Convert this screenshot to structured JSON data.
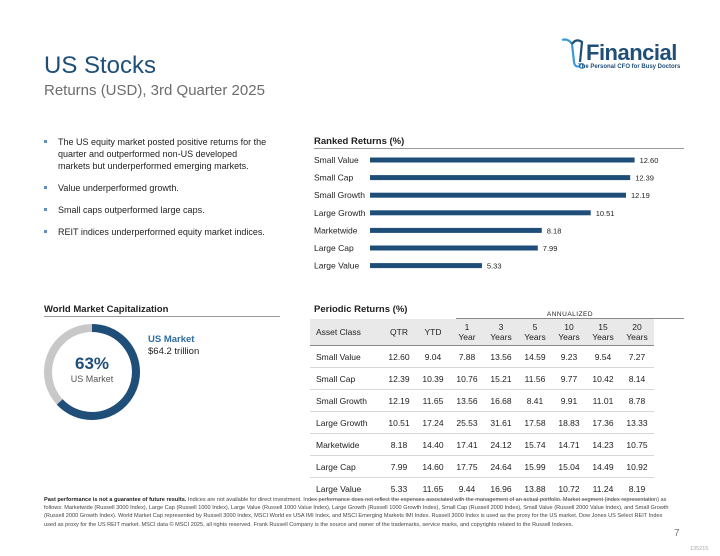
{
  "header": {
    "title": "US Stocks",
    "subtitle": "Returns (USD), 3rd Quarter 2025",
    "logo_text": "Financial",
    "logo_tagline": "The Personal CFO for Busy Doctors"
  },
  "bullets": [
    "The US equity market posted positive returns for the quarter and outperformed non-US developed markets but underperformed emerging markets.",
    "Value underperformed growth.",
    "Small caps outperformed large caps.",
    "REIT indices underperformed equity market indices."
  ],
  "colors": {
    "accent": "#1f4e79",
    "bar": "#1f4e79",
    "donut_bg": "#c8c8c8",
    "bullet": "#5e8fc0"
  },
  "market_cap": {
    "heading": "World Market Capitalization",
    "percent_label": "63%",
    "percent_value": 63,
    "center_label": "US Market",
    "legend_label": "US Market",
    "legend_value": "$64.2 trillion"
  },
  "periodic": {
    "heading": "Periodic Returns (%)",
    "annualized_label": "ANNUALIZED",
    "columns": [
      [
        "Asset Class"
      ],
      [
        "QTR"
      ],
      [
        "YTD"
      ],
      [
        "1",
        "Year"
      ],
      [
        "3",
        "Years"
      ],
      [
        "5",
        "Years"
      ],
      [
        "10",
        "Years"
      ],
      [
        "15",
        "Years"
      ],
      [
        "20",
        "Years"
      ]
    ],
    "rows": [
      [
        "Small Value",
        "12.60",
        "9.04",
        "7.88",
        "13.56",
        "14.59",
        "9.23",
        "9.54",
        "7.27"
      ],
      [
        "Small Cap",
        "12.39",
        "10.39",
        "10.76",
        "15.21",
        "11.56",
        "9.77",
        "10.42",
        "8.14"
      ],
      [
        "Small Growth",
        "12.19",
        "11.65",
        "13.56",
        "16.68",
        "8.41",
        "9.91",
        "11.01",
        "8.78"
      ],
      [
        "Large Growth",
        "10.51",
        "17.24",
        "25.53",
        "31.61",
        "17.58",
        "18.83",
        "17.36",
        "13.33"
      ],
      [
        "Marketwide",
        "8.18",
        "14.40",
        "17.41",
        "24.12",
        "15.74",
        "14.71",
        "14.23",
        "10.75"
      ],
      [
        "Large Cap",
        "7.99",
        "14.60",
        "17.75",
        "24.64",
        "15.99",
        "15.04",
        "14.49",
        "10.92"
      ],
      [
        "Large Value",
        "5.33",
        "11.65",
        "9.44",
        "16.96",
        "13.88",
        "10.72",
        "11.24",
        "8.19"
      ]
    ]
  },
  "chart_data": {
    "type": "bar",
    "orientation": "horizontal",
    "title": "Ranked Returns (%)",
    "categories": [
      "Small Value",
      "Small Cap",
      "Small Growth",
      "Large Growth",
      "Marketwide",
      "Large Cap",
      "Large Value"
    ],
    "values": [
      12.6,
      12.39,
      12.19,
      10.51,
      8.18,
      7.99,
      5.33
    ],
    "value_labels": [
      "12.60",
      "12.39",
      "12.19",
      "10.51",
      "8.18",
      "7.99",
      "5.33"
    ],
    "xlim": [
      0,
      14
    ],
    "xlabel": "",
    "ylabel": "",
    "grid": false
  },
  "footer": {
    "bold": "Past performance is not a guarantee of future results.",
    "text": " Indices are not available for direct investment. Index performance does not reflect the expenses associated with the management of an actual portfolio. Market segment (index representation) as follows: Marketwide (Russell 3000 Index), Large Cap (Russell 1000 Index), Large Value (Russell 1000 Value Index), Large Growth (Russell 1000 Growth Index), Small Cap (Russell 2000 Index), Small Value (Russell 2000 Value Index), and Small Growth (Russell 2000 Growth Index). World Market Cap represented by Russell 3000 Index, MSCI World ex USA IMI Index, and MSCI Emerging Markets IMI Index. Russell 3000 Index is used as the proxy for the US market. Dow Jones US Select REIT Index used as proxy for the US REIT market. MSCI data © MSCI 2025, all rights reserved. Frank Russell Company is the source and owner of the trademarks, service marks, and copyrights related to the Russell Indexes.",
    "page_number": "7",
    "doc_code": "135215"
  }
}
